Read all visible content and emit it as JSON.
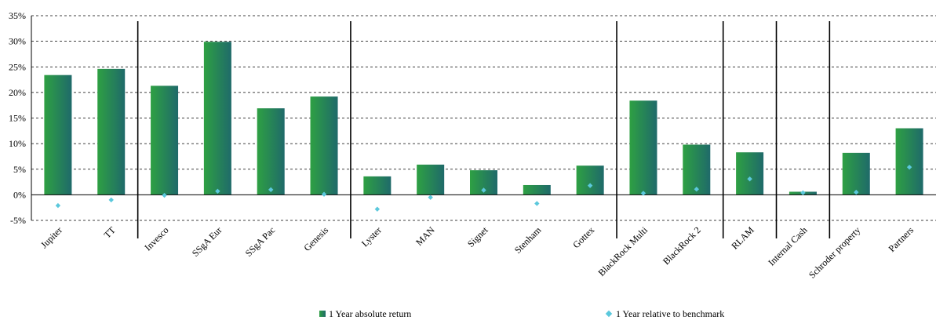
{
  "colors": {
    "bar_gradient_start": "#2ea043",
    "bar_gradient_end": "#1f6a6a",
    "marker": "#5bc8dc",
    "grid": "#000000",
    "axis": "#000000"
  },
  "chart_data": {
    "type": "bar",
    "categories": [
      "Jupiter",
      "TT",
      "Invesco",
      "SSgA Eur",
      "SSgA Pac",
      "Genesis",
      "Lyster",
      "MAN",
      "Signet",
      "Stenham",
      "Gottex",
      "BlackRock Multi",
      "BlackRock 2",
      "RLAM",
      "Internal Cash",
      "Schroder property",
      "Partners"
    ],
    "series": [
      {
        "name": "1 Year absolute return",
        "kind": "bar",
        "values": [
          23.4,
          24.6,
          21.3,
          29.9,
          16.9,
          19.2,
          3.6,
          5.9,
          4.8,
          1.9,
          5.7,
          18.4,
          9.8,
          8.3,
          0.6,
          8.2,
          13.0
        ]
      },
      {
        "name": "1 Year relative to benchmark",
        "kind": "marker",
        "values": [
          -2.1,
          -1.0,
          -0.1,
          0.7,
          1.0,
          0.1,
          -2.8,
          -0.5,
          0.9,
          -1.7,
          1.8,
          0.3,
          1.1,
          3.1,
          0.4,
          0.5,
          5.4
        ]
      }
    ],
    "y_ticks": [
      "-5%",
      "0%",
      "5%",
      "10%",
      "15%",
      "20%",
      "25%",
      "30%",
      "35%"
    ],
    "ylim": [
      -5,
      35
    ],
    "group_separators_after_index": [
      1,
      5,
      10,
      12,
      13,
      14
    ],
    "grid": "horizontal-dashed",
    "legend_position": "bottom"
  }
}
